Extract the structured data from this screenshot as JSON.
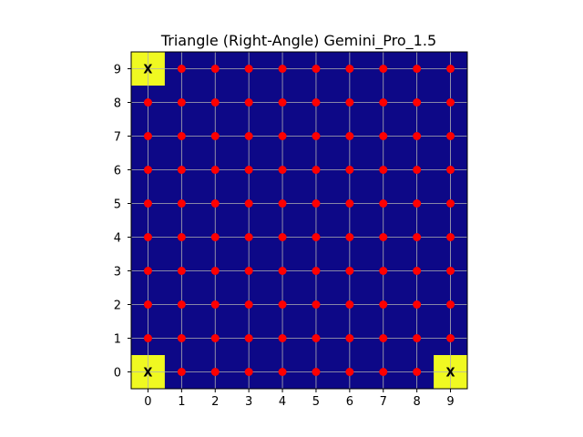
{
  "chart_data": {
    "type": "heatmap",
    "title": "Triangle (Right-Angle) Gemini_Pro_1.5",
    "xlabel": "",
    "ylabel": "",
    "xlim": [
      -0.5,
      9.5
    ],
    "ylim": [
      -0.5,
      9.5
    ],
    "x_ticks": [
      "0",
      "1",
      "2",
      "3",
      "4",
      "5",
      "6",
      "7",
      "8",
      "9"
    ],
    "y_ticks": [
      "0",
      "1",
      "2",
      "3",
      "4",
      "5",
      "6",
      "7",
      "8",
      "9"
    ],
    "grid": true,
    "grid_size": [
      10,
      10
    ],
    "background_color": "#0d0887",
    "highlight_color": "#f0f921",
    "dot_color": "#ff0000",
    "highlighted_cells": [
      {
        "x": 0,
        "y": 9,
        "label": "X"
      },
      {
        "x": 0,
        "y": 0,
        "label": "X"
      },
      {
        "x": 9,
        "y": 0,
        "label": "X"
      }
    ],
    "dots": "all cells except highlighted"
  }
}
